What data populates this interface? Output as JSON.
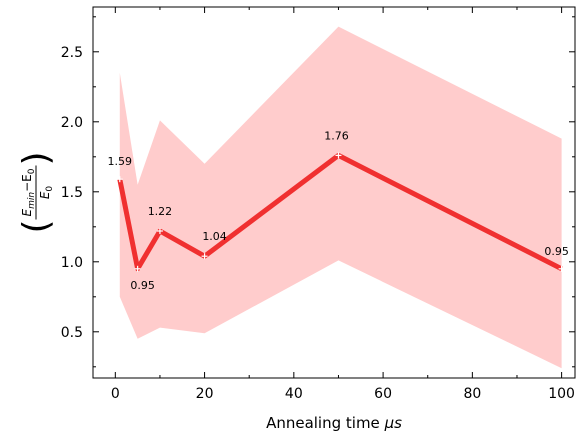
{
  "chart_data": {
    "type": "line",
    "xlabel": "Annealing time",
    "xlabel_unit": "μs",
    "ylabel": {
      "paren_open": "(",
      "paren_close": ")",
      "num_e": "E",
      "num_sub1": "min",
      "num_minus": "−E",
      "num_sub2": "0",
      "den_e": "E",
      "den_sub": "0"
    },
    "xlim": [
      -5,
      103
    ],
    "ylim": [
      0.17,
      2.82
    ],
    "xticks": [
      0,
      20,
      40,
      60,
      80,
      100
    ],
    "yticks": [
      0.5,
      1.0,
      1.5,
      2.0,
      2.5
    ],
    "xtick_labels": [
      "0",
      "20",
      "40",
      "60",
      "80",
      "100"
    ],
    "ytick_labels": [
      "0.5",
      "1.0",
      "1.5",
      "2.0",
      "2.5"
    ],
    "series": [
      {
        "color": "#f03030",
        "x": [
          1,
          5,
          10,
          20,
          50,
          100
        ],
        "y": [
          1.59,
          0.95,
          1.22,
          1.04,
          1.76,
          0.95
        ],
        "labels": [
          "1.59",
          "0.95",
          "1.22",
          "1.04",
          "1.76",
          "0.95"
        ]
      }
    ],
    "band": {
      "color": "#ffcccc",
      "x": [
        1,
        5,
        10,
        20,
        50,
        100
      ],
      "upper": [
        2.35,
        1.55,
        2.01,
        1.7,
        2.68,
        1.88
      ],
      "lower": [
        0.75,
        0.45,
        0.53,
        0.49,
        1.01,
        0.24
      ]
    },
    "grid": false
  }
}
